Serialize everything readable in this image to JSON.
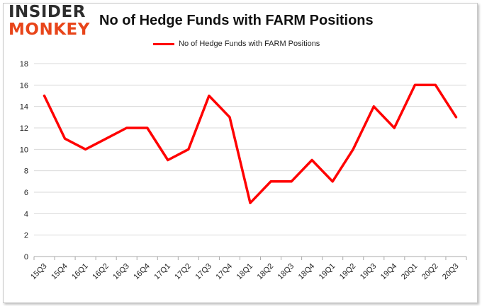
{
  "logo": {
    "line1": "INSIDER",
    "line2": "MONKEY"
  },
  "colors": {
    "series": "#ff0000",
    "grid": "#d9d9d9",
    "axis": "#aaaaaa",
    "logo_dark": "#2d2d2d",
    "logo_accent": "#e8451a"
  },
  "chart_data": {
    "type": "line",
    "title": "No of Hedge Funds with FARM Positions",
    "xlabel": "",
    "ylabel": "",
    "ylim": [
      0,
      18
    ],
    "yticks": [
      0,
      2,
      4,
      6,
      8,
      10,
      12,
      14,
      16,
      18
    ],
    "grid": true,
    "legend_position": "top-center",
    "categories": [
      "15Q3",
      "15Q4",
      "16Q1",
      "16Q2",
      "16Q3",
      "16Q4",
      "17Q1",
      "17Q2",
      "17Q3",
      "17Q4",
      "18Q1",
      "18Q2",
      "18Q3",
      "18Q4",
      "19Q1",
      "19Q2",
      "19Q3",
      "19Q4",
      "20Q1",
      "20Q2",
      "20Q3"
    ],
    "series": [
      {
        "name": "No of Hedge Funds with FARM Positions",
        "values": [
          15,
          11,
          10,
          11,
          12,
          12,
          9,
          10,
          15,
          13,
          5,
          7,
          7,
          9,
          7,
          10,
          14,
          12,
          16,
          16,
          13
        ]
      }
    ]
  }
}
